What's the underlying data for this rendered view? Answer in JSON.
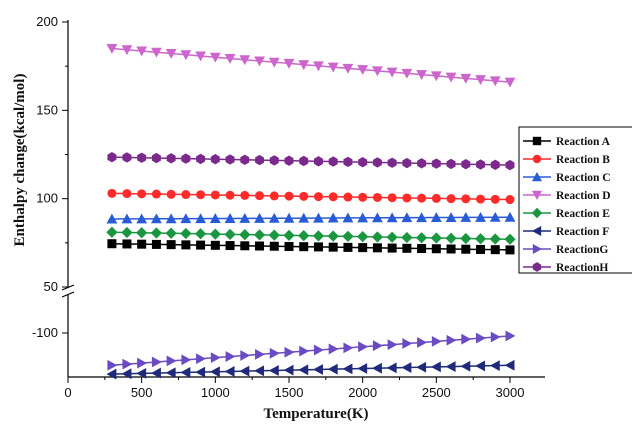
{
  "chart_data": {
    "type": "line",
    "xlabel": "Temperature(K)",
    "ylabel": "Enthalpy change(kcal/mol)",
    "x_ticks": [
      0,
      500,
      1000,
      1500,
      2000,
      2500,
      3000
    ],
    "y_ticks_upper": [
      50,
      100,
      150,
      200
    ],
    "y_ticks_lower": [
      -100
    ],
    "xlim": [
      0,
      3200
    ],
    "ylim_upper": [
      45,
      200
    ],
    "ylim_lower": [
      -132,
      -82
    ],
    "axis_break": true,
    "grid": false,
    "legend_position": "right",
    "x": [
      298,
      400,
      500,
      600,
      700,
      800,
      900,
      1000,
      1100,
      1200,
      1300,
      1400,
      1500,
      1600,
      1700,
      1800,
      1900,
      2000,
      2100,
      2200,
      2300,
      2400,
      2500,
      2600,
      2700,
      2800,
      2900,
      3000
    ],
    "series": [
      {
        "name": "Reaction A",
        "marker": "square",
        "color": "#000000",
        "start": 74.5,
        "end": 71.0
      },
      {
        "name": "Reaction B",
        "marker": "circle",
        "color": "#ff2a2a",
        "start": 103.0,
        "end": 99.5
      },
      {
        "name": "Reaction C",
        "marker": "triangle-up",
        "color": "#2a5bd7",
        "start": 88.5,
        "end": 89.5
      },
      {
        "name": "Reaction D",
        "marker": "triangle-down",
        "color": "#cc66cc",
        "start": 185.0,
        "end": 166.0
      },
      {
        "name": "Reaction E",
        "marker": "diamond",
        "color": "#1a9641",
        "start": 81.0,
        "end": 77.0
      },
      {
        "name": "Reaction F",
        "marker": "triangle-left",
        "color": "#1f2a7a",
        "start": -128.0,
        "end": -122.0
      },
      {
        "name": "ReactionG",
        "marker": "triangle-right",
        "color": "#6a4bc4",
        "start": -122.0,
        "end": -102.0
      },
      {
        "name": "ReactionH",
        "marker": "hexagon",
        "color": "#7b2a8c",
        "start": 123.5,
        "end": 119.0
      }
    ]
  }
}
